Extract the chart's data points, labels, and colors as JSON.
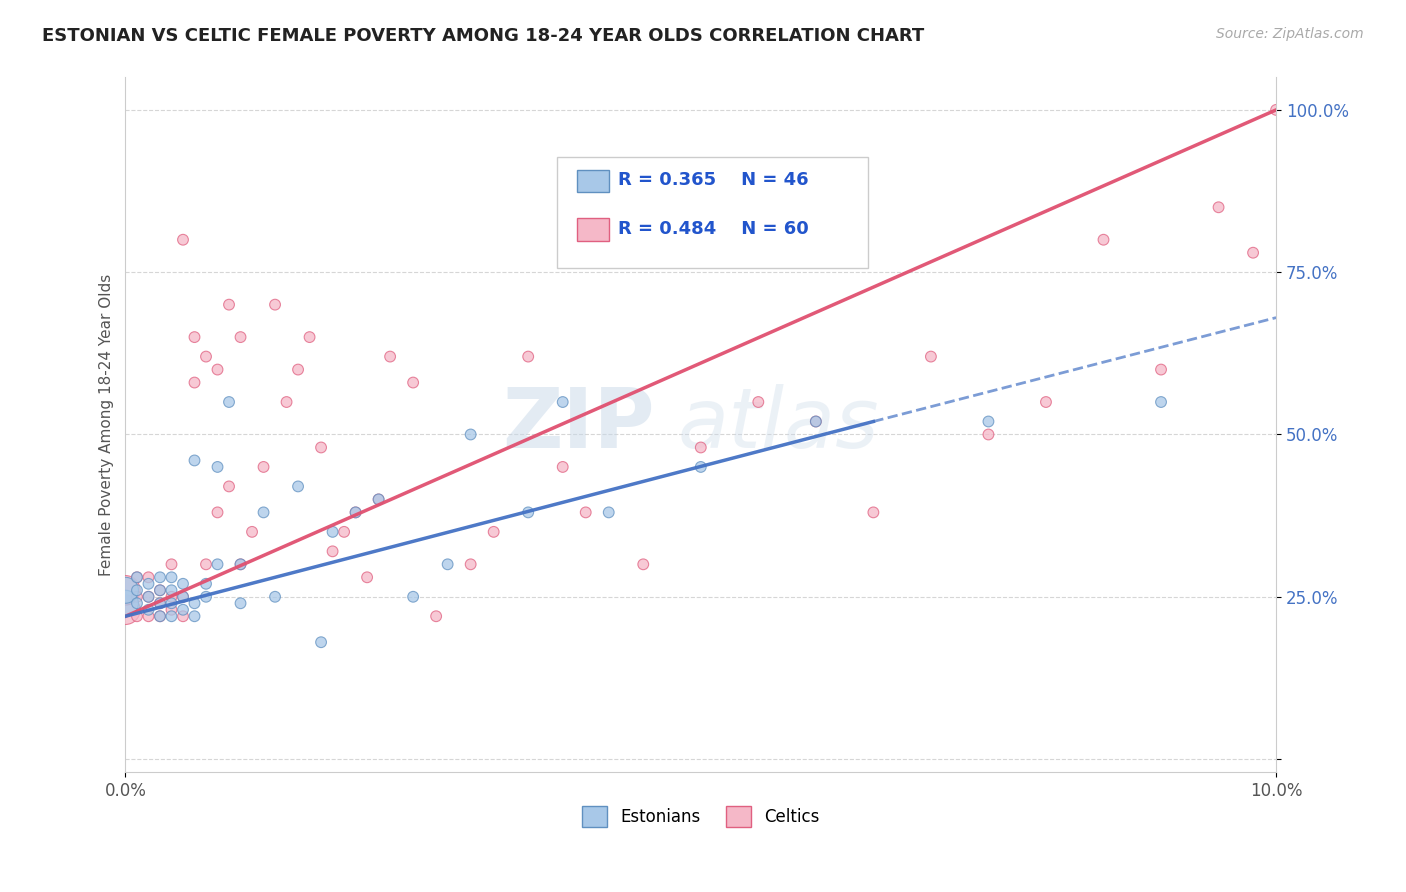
{
  "title": "ESTONIAN VS CELTIC FEMALE POVERTY AMONG 18-24 YEAR OLDS CORRELATION CHART",
  "source": "Source: ZipAtlas.com",
  "ylabel": "Female Poverty Among 18-24 Year Olds",
  "xlim": [
    0.0,
    0.1
  ],
  "ylim": [
    -0.02,
    1.05
  ],
  "legend_r_estonian": "R = 0.365",
  "legend_n_estonian": "N = 46",
  "legend_r_celtic": "R = 0.484",
  "legend_n_celtic": "N = 60",
  "estonian_color": "#a8c8e8",
  "celtic_color": "#f5b8c8",
  "estonian_edge": "#6090c0",
  "celtic_edge": "#e06080",
  "trend_estonian_color": "#4472c4",
  "trend_celtic_color": "#e05070",
  "watermark_zip": "ZIP",
  "watermark_atlas": "atlas",
  "estonian_x": [
    0.0,
    0.0,
    0.001,
    0.001,
    0.001,
    0.002,
    0.002,
    0.002,
    0.003,
    0.003,
    0.003,
    0.003,
    0.004,
    0.004,
    0.004,
    0.004,
    0.005,
    0.005,
    0.005,
    0.006,
    0.006,
    0.006,
    0.007,
    0.007,
    0.008,
    0.008,
    0.009,
    0.01,
    0.01,
    0.012,
    0.013,
    0.015,
    0.017,
    0.018,
    0.02,
    0.022,
    0.025,
    0.028,
    0.03,
    0.035,
    0.038,
    0.042,
    0.05,
    0.06,
    0.075,
    0.09
  ],
  "estonian_y": [
    0.24,
    0.26,
    0.24,
    0.26,
    0.28,
    0.23,
    0.25,
    0.27,
    0.22,
    0.24,
    0.26,
    0.28,
    0.22,
    0.24,
    0.26,
    0.28,
    0.23,
    0.25,
    0.27,
    0.22,
    0.24,
    0.46,
    0.25,
    0.27,
    0.3,
    0.45,
    0.55,
    0.24,
    0.3,
    0.38,
    0.25,
    0.42,
    0.18,
    0.35,
    0.38,
    0.4,
    0.25,
    0.3,
    0.5,
    0.38,
    0.55,
    0.38,
    0.45,
    0.52,
    0.52,
    0.55
  ],
  "celtic_x": [
    0.0,
    0.0,
    0.001,
    0.001,
    0.001,
    0.002,
    0.002,
    0.002,
    0.003,
    0.003,
    0.003,
    0.004,
    0.004,
    0.004,
    0.005,
    0.005,
    0.005,
    0.006,
    0.006,
    0.007,
    0.007,
    0.008,
    0.008,
    0.009,
    0.009,
    0.01,
    0.01,
    0.011,
    0.012,
    0.013,
    0.014,
    0.015,
    0.016,
    0.017,
    0.018,
    0.019,
    0.02,
    0.021,
    0.022,
    0.023,
    0.025,
    0.027,
    0.03,
    0.032,
    0.035,
    0.038,
    0.04,
    0.045,
    0.05,
    0.055,
    0.06,
    0.065,
    0.07,
    0.075,
    0.08,
    0.085,
    0.09,
    0.095,
    0.098,
    0.1
  ],
  "celtic_y": [
    0.23,
    0.26,
    0.22,
    0.25,
    0.28,
    0.22,
    0.25,
    0.28,
    0.22,
    0.24,
    0.26,
    0.23,
    0.25,
    0.3,
    0.22,
    0.25,
    0.8,
    0.58,
    0.65,
    0.3,
    0.62,
    0.38,
    0.6,
    0.42,
    0.7,
    0.65,
    0.3,
    0.35,
    0.45,
    0.7,
    0.55,
    0.6,
    0.65,
    0.48,
    0.32,
    0.35,
    0.38,
    0.28,
    0.4,
    0.62,
    0.58,
    0.22,
    0.3,
    0.35,
    0.62,
    0.45,
    0.38,
    0.3,
    0.48,
    0.55,
    0.52,
    0.38,
    0.62,
    0.5,
    0.55,
    0.8,
    0.6,
    0.85,
    0.78,
    1.0
  ],
  "estonian_sizes_base": 60,
  "celtic_sizes_base": 60,
  "estonian_large_idx": [
    0,
    1
  ],
  "estonian_large_size": 350,
  "celtic_large_idx": [
    0,
    1
  ],
  "celtic_large_size": 450
}
